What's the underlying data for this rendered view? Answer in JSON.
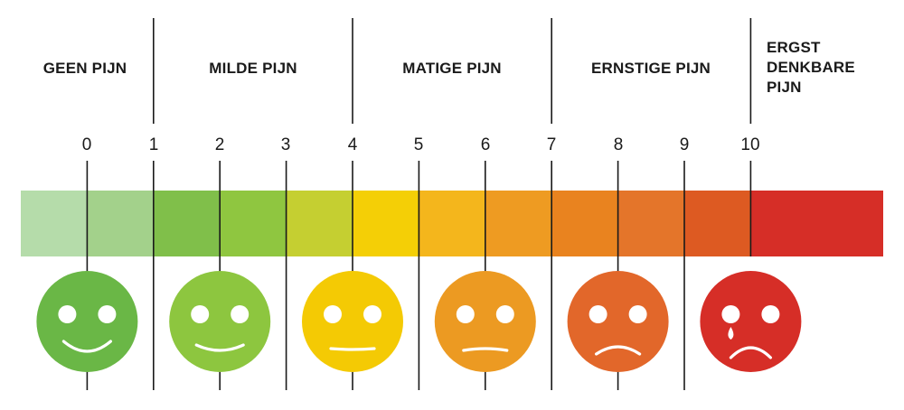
{
  "categories": [
    {
      "label": "GEEN PIJN",
      "from": 0,
      "to": 1
    },
    {
      "label": "MILDE PIJN",
      "from": 1,
      "to": 4
    },
    {
      "label": "MATIGE PIJN",
      "from": 4,
      "to": 7
    },
    {
      "label": "ERNSTIGE PIJN",
      "from": 7,
      "to": 10
    },
    {
      "label": "ERGST DENKBARE PIJN",
      "from": 10,
      "to": 11
    }
  ],
  "ticks": [
    "0",
    "1",
    "2",
    "3",
    "4",
    "5",
    "6",
    "7",
    "8",
    "9",
    "10"
  ],
  "segment_colors": [
    "#b5dcaa",
    "#a3d18b",
    "#80bf4a",
    "#8fc640",
    "#c5cf31",
    "#f4cf06",
    "#f4b61c",
    "#ee9b22",
    "#e9831f",
    "#e4752a",
    "#dd5a22",
    "#d62e27"
  ],
  "faces": [
    {
      "name": "big-smile-face",
      "color": "#6ab746",
      "mouth": "big-smile"
    },
    {
      "name": "smile-face",
      "color": "#8dc63f",
      "mouth": "smile"
    },
    {
      "name": "neutral-face",
      "color": "#f4ca04",
      "mouth": "flat"
    },
    {
      "name": "slight-frown-face",
      "color": "#ec9a22",
      "mouth": "slight-frown"
    },
    {
      "name": "frown-face",
      "color": "#e2672a",
      "mouth": "frown"
    },
    {
      "name": "crying-face",
      "color": "#d62e27",
      "mouth": "sad",
      "tear": true
    }
  ]
}
